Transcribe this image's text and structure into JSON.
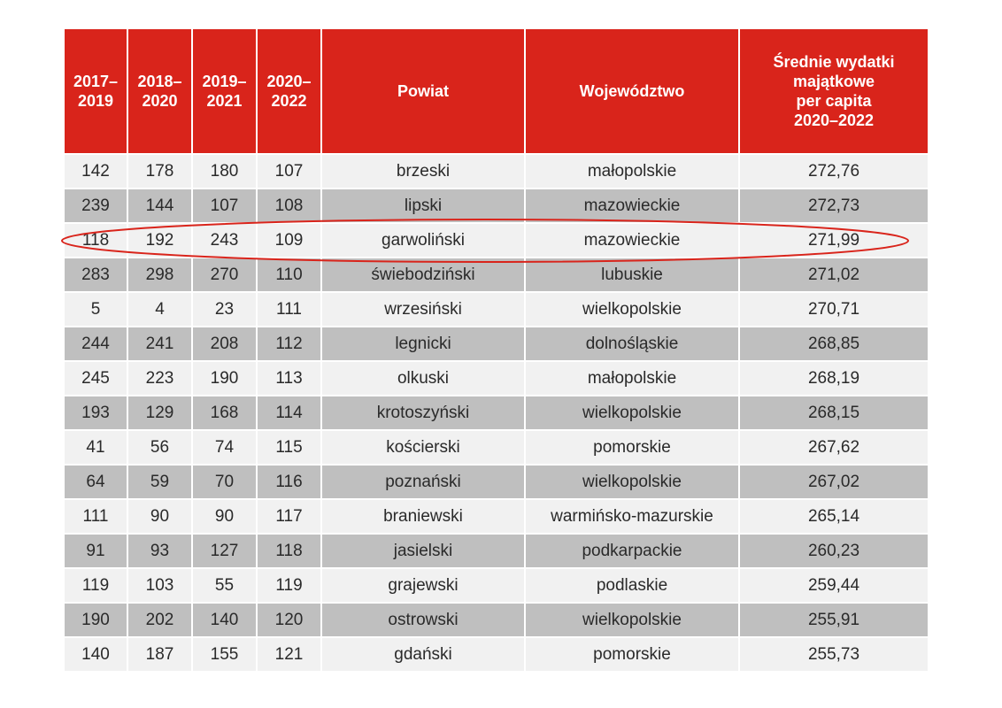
{
  "table": {
    "headers": [
      "2017–\n2019",
      "2018–\n2020",
      "2019–\n2021",
      "2020–\n2022",
      "Powiat",
      "Województwo",
      "Średnie wydatki\nmajątkowe\nper capita\n2020–2022"
    ],
    "rows": [
      [
        "142",
        "178",
        "180",
        "107",
        "brzeski",
        "małopolskie",
        "272,76"
      ],
      [
        "239",
        "144",
        "107",
        "108",
        "lipski",
        "mazowieckie",
        "272,73"
      ],
      [
        "118",
        "192",
        "243",
        "109",
        "garwoliński",
        "mazowieckie",
        "271,99"
      ],
      [
        "283",
        "298",
        "270",
        "110",
        "świebodziński",
        "lubuskie",
        "271,02"
      ],
      [
        "5",
        "4",
        "23",
        "111",
        "wrzesiński",
        "wielkopolskie",
        "270,71"
      ],
      [
        "244",
        "241",
        "208",
        "112",
        "legnicki",
        "dolnośląskie",
        "268,85"
      ],
      [
        "245",
        "223",
        "190",
        "113",
        "olkuski",
        "małopolskie",
        "268,19"
      ],
      [
        "193",
        "129",
        "168",
        "114",
        "krotoszyński",
        "wielkopolskie",
        "268,15"
      ],
      [
        "41",
        "56",
        "74",
        "115",
        "kościerski",
        "pomorskie",
        "267,62"
      ],
      [
        "64",
        "59",
        "70",
        "116",
        "poznański",
        "wielkopolskie",
        "267,02"
      ],
      [
        "111",
        "90",
        "90",
        "117",
        "braniewski",
        "warmińsko-mazurskie",
        "265,14"
      ],
      [
        "91",
        "93",
        "127",
        "118",
        "jasielski",
        "podkarpackie",
        "260,23"
      ],
      [
        "119",
        "103",
        "55",
        "119",
        "grajewski",
        "podlaskie",
        "259,44"
      ],
      [
        "190",
        "202",
        "140",
        "120",
        "ostrowski",
        "wielkopolskie",
        "255,91"
      ],
      [
        "140",
        "187",
        "155",
        "121",
        "gdański",
        "pomorskie",
        "255,73"
      ]
    ],
    "highlighted_row": 2
  },
  "colors": {
    "header_bg": "#d9241b",
    "row_light": "#f1f1f1",
    "row_dark": "#bfbfbf",
    "highlight_ellipse": "#d9241b"
  }
}
